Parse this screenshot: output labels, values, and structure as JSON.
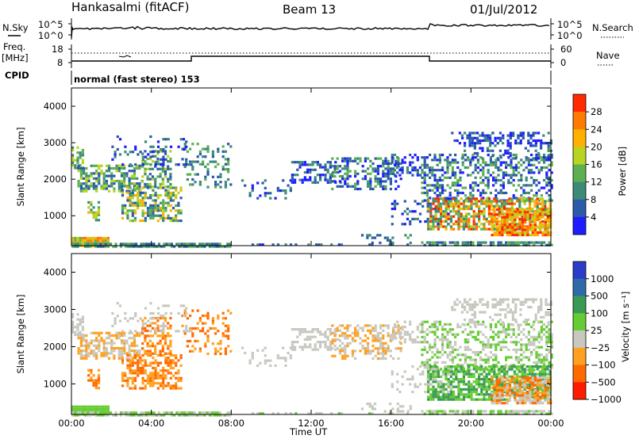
{
  "header": {
    "station": "Hankasalmi (fitACF)",
    "beam": "Beam 13",
    "date": "01/Jul/2012"
  },
  "nsky_panel": {
    "left_label": "N.Sky",
    "left_ticks": [
      "10^5",
      "10^0"
    ],
    "right_label": "N.Search",
    "right_ticks": [
      "10^5",
      "10^0"
    ]
  },
  "freq_panel": {
    "left_label_line1": "Freq.",
    "left_label_line2": "[MHz]",
    "left_ticks": [
      "18",
      "8"
    ],
    "right_label": "Nave",
    "right_ticks": [
      "60",
      "0"
    ]
  },
  "cpid": {
    "label": "CPID",
    "value": "normal (fast stereo) 153"
  },
  "x_axis": {
    "label": "Time UT",
    "ticks": [
      "00:00",
      "04:00",
      "08:00",
      "12:00",
      "16:00",
      "20:00",
      "00:00"
    ]
  },
  "chart_data": [
    {
      "type": "heatmap",
      "title": "",
      "ylabel": "Slant Range [km]",
      "xlabel": "",
      "ylim": [
        180,
        4500
      ],
      "yticks": [
        "1000",
        "2000",
        "3000",
        "4000"
      ],
      "colorbar": {
        "label": "Power [dB]",
        "ticks": [
          "4",
          "8",
          "12",
          "16",
          "20",
          "24",
          "28"
        ],
        "colors": [
          "#1d1dff",
          "#2a5aa8",
          "#3d8a78",
          "#5cb050",
          "#b8d420",
          "#ffb000",
          "#ff7a00",
          "#ff2a00"
        ]
      }
    },
    {
      "type": "heatmap",
      "title": "",
      "ylabel": "Slant Range [km]",
      "xlabel": "Time UT",
      "ylim": [
        180,
        4500
      ],
      "yticks": [
        "1000",
        "2000",
        "3000",
        "4000"
      ],
      "colorbar": {
        "label": "Velocity [m s⁻¹]",
        "ticks": [
          "1000",
          "500",
          "100",
          "25",
          "−25",
          "−100",
          "−500",
          "−1000"
        ],
        "colors": [
          "#2a3dc8",
          "#2e6aa8",
          "#3a9a55",
          "#66cc33",
          "#c8c8c0",
          "#ffa020",
          "#ff6a00",
          "#ff1a00"
        ]
      }
    }
  ]
}
